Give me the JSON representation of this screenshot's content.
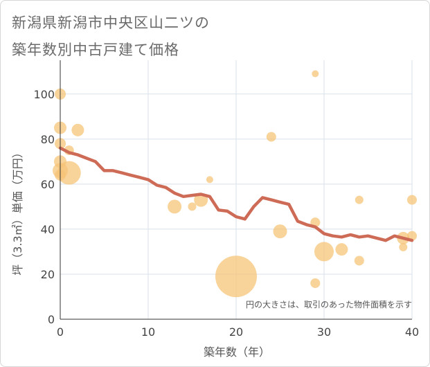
{
  "title_line1": "新潟県新潟市中央区山二ツの",
  "title_line2": "築年数別中古戸建て価格",
  "chart_data": {
    "type": "scatter",
    "xlabel": "築年数（年）",
    "ylabel": "坪（3.3㎡）単価（万円）",
    "xlim": [
      0,
      40
    ],
    "ylim": [
      0,
      115
    ],
    "xticks": [
      0,
      10,
      20,
      30,
      40
    ],
    "yticks": [
      0,
      20,
      40,
      60,
      80,
      100
    ],
    "grid": true,
    "note": "円の大きさは、取引のあった物件面積を示す",
    "colors": {
      "bubble": "#f5c478",
      "line": "#cd6b56"
    },
    "points": [
      {
        "x": 0,
        "y": 100,
        "s": 8
      },
      {
        "x": 0,
        "y": 85,
        "s": 9
      },
      {
        "x": 0,
        "y": 78,
        "s": 8
      },
      {
        "x": 0,
        "y": 70,
        "s": 9
      },
      {
        "x": 0,
        "y": 66,
        "s": 11
      },
      {
        "x": 0,
        "y": 64,
        "s": 8
      },
      {
        "x": 1,
        "y": 65,
        "s": 17
      },
      {
        "x": 1,
        "y": 75,
        "s": 7
      },
      {
        "x": 2,
        "y": 84,
        "s": 9
      },
      {
        "x": 13,
        "y": 50,
        "s": 10
      },
      {
        "x": 15,
        "y": 50,
        "s": 6
      },
      {
        "x": 16,
        "y": 53,
        "s": 10
      },
      {
        "x": 17,
        "y": 62,
        "s": 5
      },
      {
        "x": 20,
        "y": 19,
        "s": 30
      },
      {
        "x": 24,
        "y": 81,
        "s": 7
      },
      {
        "x": 25,
        "y": 39,
        "s": 10
      },
      {
        "x": 29,
        "y": 109,
        "s": 5
      },
      {
        "x": 29,
        "y": 43,
        "s": 7
      },
      {
        "x": 29,
        "y": 16,
        "s": 7
      },
      {
        "x": 30,
        "y": 30,
        "s": 14
      },
      {
        "x": 32,
        "y": 31,
        "s": 9
      },
      {
        "x": 34,
        "y": 53,
        "s": 6
      },
      {
        "x": 34,
        "y": 26,
        "s": 7
      },
      {
        "x": 39,
        "y": 36,
        "s": 9
      },
      {
        "x": 39,
        "y": 32,
        "s": 6
      },
      {
        "x": 40,
        "y": 53,
        "s": 7
      },
      {
        "x": 40,
        "y": 37,
        "s": 7
      }
    ],
    "trend": {
      "name": "",
      "x": [
        0,
        1,
        2,
        3,
        4,
        5,
        6,
        7,
        8,
        9,
        10,
        11,
        12,
        13,
        14,
        15,
        16,
        17,
        18,
        19,
        20,
        21,
        22,
        23,
        24,
        25,
        26,
        27,
        28,
        29,
        30,
        31,
        32,
        33,
        34,
        35,
        36,
        37,
        38,
        39,
        40
      ],
      "y": [
        76,
        74,
        73,
        71.5,
        70,
        66,
        66,
        65,
        64,
        63,
        62,
        59.5,
        58.5,
        56,
        54.5,
        55,
        55.5,
        54.5,
        48.5,
        48,
        45.5,
        44.5,
        50,
        54,
        53,
        52,
        51,
        43.5,
        42,
        41,
        38,
        37,
        36.5,
        37.5,
        36.5,
        37,
        36,
        35,
        37,
        36,
        35
      ]
    }
  }
}
